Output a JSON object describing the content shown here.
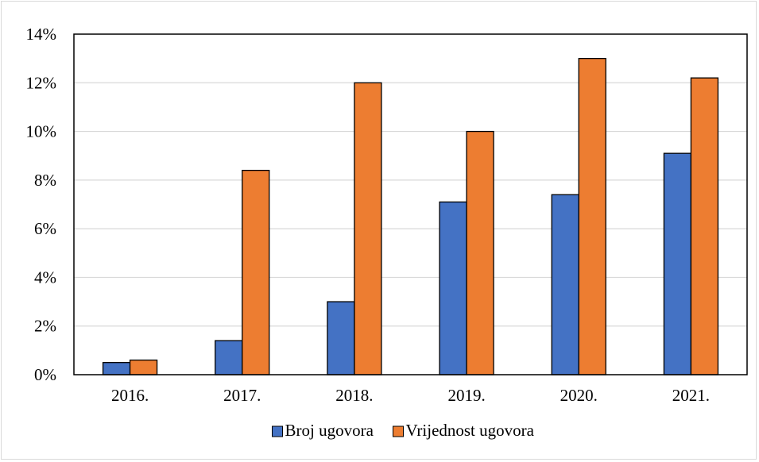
{
  "chart_data": {
    "type": "bar",
    "categories": [
      "2016.",
      "2017.",
      "2018.",
      "2019.",
      "2020.",
      "2021."
    ],
    "series": [
      {
        "name": "Broj ugovora",
        "color": "#4472C4",
        "values": [
          0.5,
          1.4,
          3.0,
          7.1,
          7.4,
          9.1
        ]
      },
      {
        "name": "Vrijednost ugovora",
        "color": "#ED7D31",
        "values": [
          0.6,
          8.4,
          12.0,
          10.0,
          13.0,
          12.2
        ]
      }
    ],
    "title": "",
    "xlabel": "",
    "ylabel": "",
    "ylim": [
      0,
      14
    ],
    "yticks": [
      "0%",
      "2%",
      "4%",
      "6%",
      "8%",
      "10%",
      "12%",
      "14%"
    ],
    "grid": true,
    "legend_position": "bottom"
  }
}
